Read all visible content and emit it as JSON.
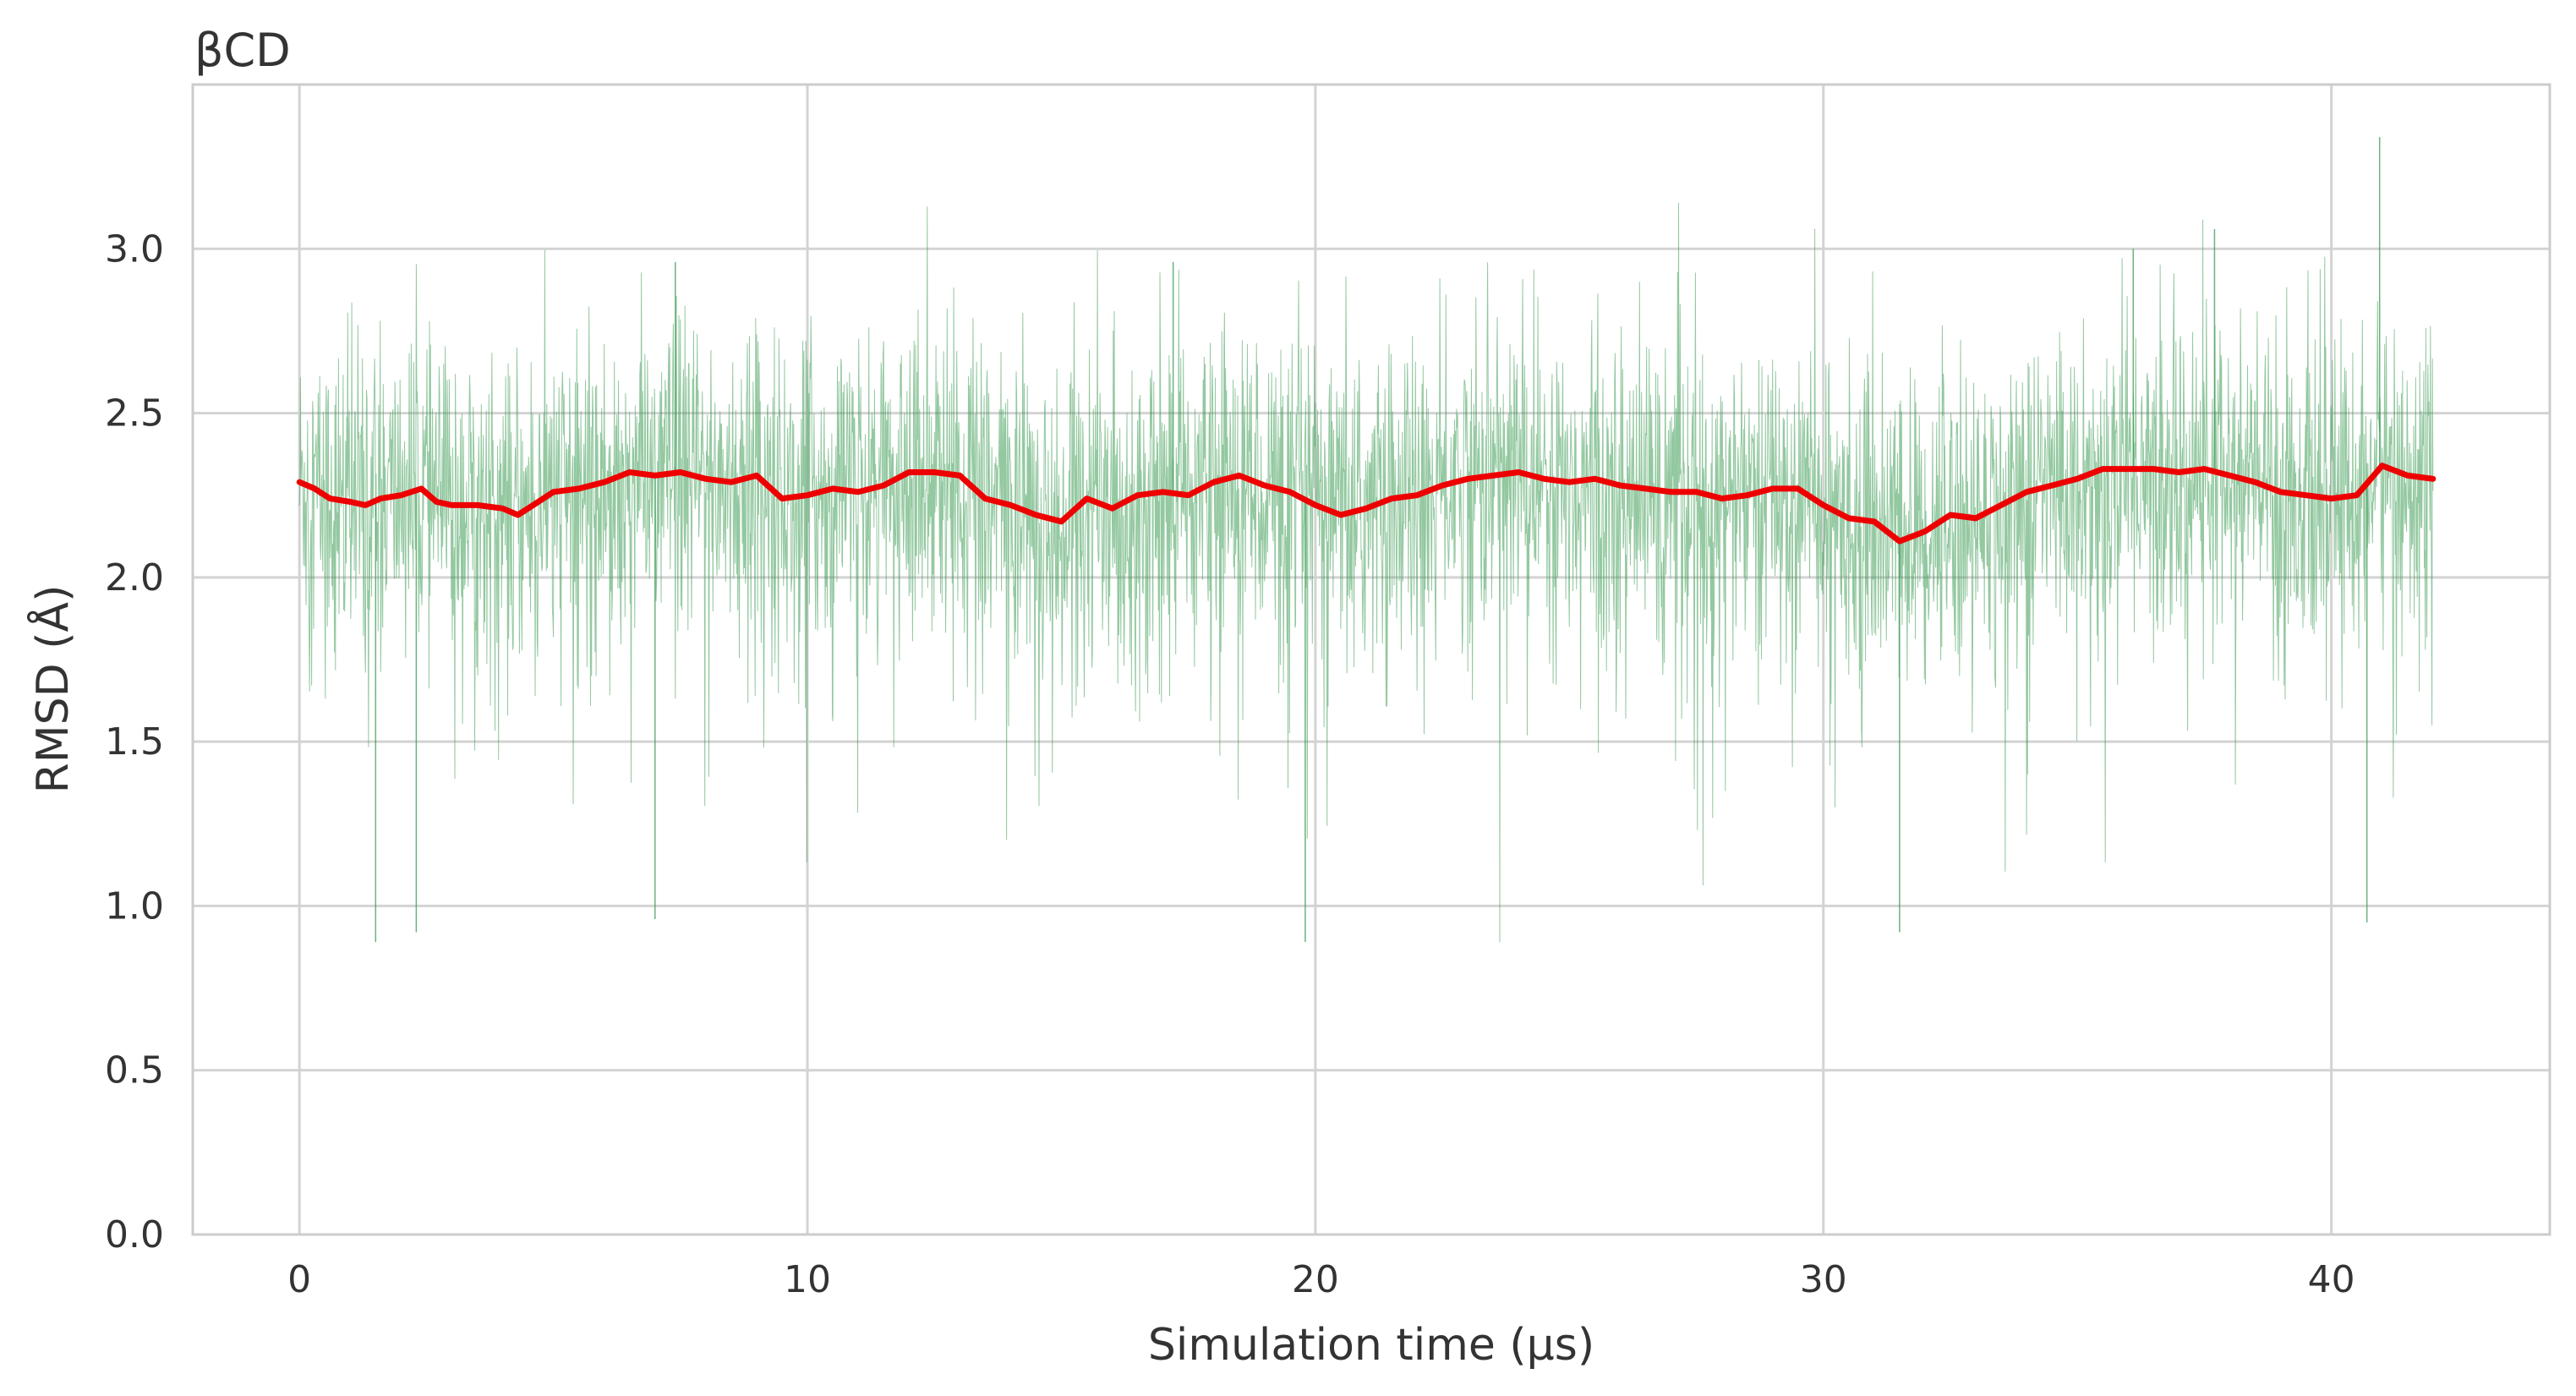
{
  "chart_data": {
    "type": "line",
    "title": "βCD",
    "xlabel": "Simulation time (μs)",
    "ylabel": "RMSD (Å)",
    "xlim": [
      -2.1,
      44.3
    ],
    "ylim": [
      0.0,
      3.5
    ],
    "x_ticks": [
      0,
      10,
      20,
      30,
      40
    ],
    "x_tick_labels": [
      "0",
      "10",
      "20",
      "30",
      "40"
    ],
    "y_ticks": [
      0.0,
      0.5,
      1.0,
      1.5,
      2.0,
      2.5,
      3.0
    ],
    "y_tick_labels": [
      "0.0",
      "0.5",
      "1.0",
      "1.5",
      "2.0",
      "2.5",
      "3.0"
    ],
    "grid": true,
    "colors": {
      "raw": "#3a9a52",
      "smoothed": "#ee0000",
      "grid": "#d3d3d3",
      "frame": "#cccccc"
    },
    "series": [
      {
        "style": "raw-fluctuation",
        "x_range": [
          0,
          42
        ],
        "typical_band": [
          1.7,
          2.75
        ],
        "extremes": {
          "min": 0.89,
          "max": 3.34
        },
        "spikes": [
          {
            "x": 1.5,
            "y": 0.89
          },
          {
            "x": 2.3,
            "y": 0.92
          },
          {
            "x": 7.0,
            "y": 0.96
          },
          {
            "x": 7.4,
            "y": 2.96
          },
          {
            "x": 17.2,
            "y": 2.96
          },
          {
            "x": 19.8,
            "y": 0.89
          },
          {
            "x": 31.5,
            "y": 0.92
          },
          {
            "x": 36.1,
            "y": 3.0
          },
          {
            "x": 37.7,
            "y": 3.06
          },
          {
            "x": 40.7,
            "y": 0.95
          },
          {
            "x": 40.95,
            "y": 3.34
          }
        ]
      },
      {
        "style": "rolling-mean",
        "x": [
          0,
          0.3,
          0.6,
          1,
          1.3,
          1.6,
          2,
          2.4,
          2.7,
          3,
          3.5,
          4,
          4.3,
          4.6,
          5,
          5.5,
          6,
          6.5,
          7,
          7.5,
          8,
          8.5,
          9,
          9.5,
          10,
          10.5,
          11,
          11.5,
          12,
          12.5,
          13,
          13.5,
          14,
          14.5,
          15,
          15.5,
          16,
          16.5,
          17,
          17.5,
          18,
          18.5,
          19,
          19.5,
          20,
          20.5,
          21,
          21.5,
          22,
          22.5,
          23,
          23.5,
          24,
          24.5,
          25,
          25.5,
          26,
          26.5,
          27,
          27.5,
          28,
          28.5,
          29,
          29.5,
          30,
          30.5,
          31,
          31.5,
          32,
          32.5,
          33,
          33.5,
          34,
          34.5,
          35,
          35.5,
          36,
          36.5,
          37,
          37.5,
          38,
          38.5,
          39,
          39.5,
          40,
          40.5,
          41,
          41.5,
          42
        ],
        "y": [
          2.29,
          2.27,
          2.24,
          2.23,
          2.22,
          2.24,
          2.25,
          2.27,
          2.23,
          2.22,
          2.22,
          2.21,
          2.19,
          2.22,
          2.26,
          2.27,
          2.29,
          2.32,
          2.31,
          2.32,
          2.3,
          2.29,
          2.31,
          2.24,
          2.25,
          2.27,
          2.26,
          2.28,
          2.32,
          2.32,
          2.31,
          2.24,
          2.22,
          2.19,
          2.17,
          2.24,
          2.21,
          2.25,
          2.26,
          2.25,
          2.29,
          2.31,
          2.28,
          2.26,
          2.22,
          2.19,
          2.21,
          2.24,
          2.25,
          2.28,
          2.3,
          2.31,
          2.32,
          2.3,
          2.29,
          2.3,
          2.28,
          2.27,
          2.26,
          2.26,
          2.24,
          2.25,
          2.27,
          2.27,
          2.22,
          2.18,
          2.17,
          2.11,
          2.14,
          2.19,
          2.18,
          2.22,
          2.26,
          2.28,
          2.3,
          2.33,
          2.33,
          2.33,
          2.32,
          2.33,
          2.31,
          2.29,
          2.26,
          2.25,
          2.24,
          2.25,
          2.34,
          2.31,
          2.3
        ]
      }
    ]
  }
}
